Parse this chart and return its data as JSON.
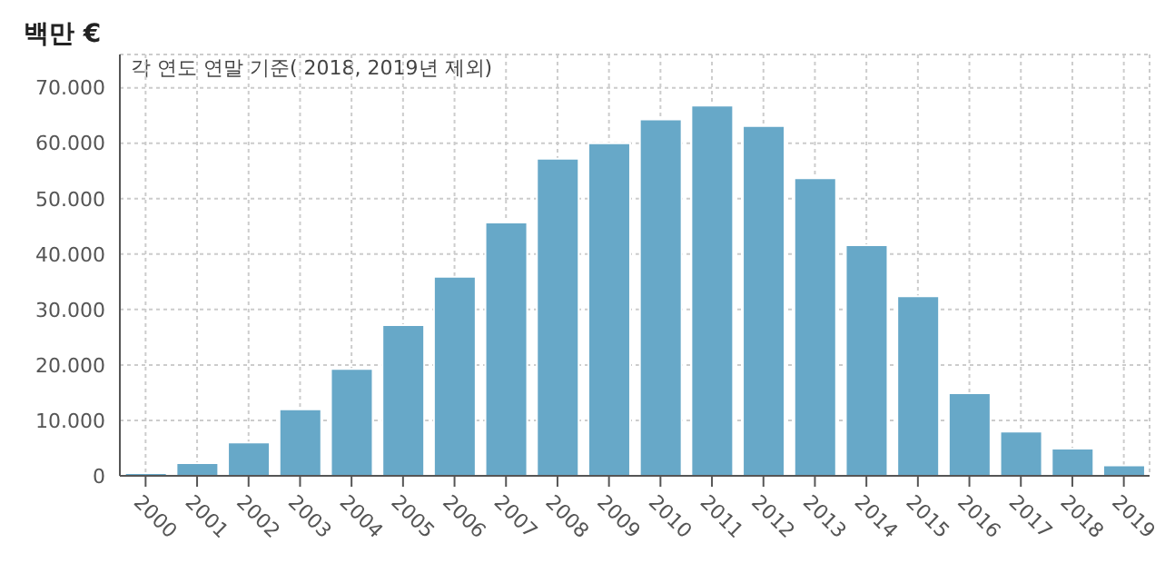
{
  "chart_data": {
    "type": "bar",
    "ylabel": "백만 €",
    "annotations": [
      "각 연도 연말 기준( 2018, 2019년 제외)"
    ],
    "categories": [
      "2000",
      "2001",
      "2002",
      "2003",
      "2004",
      "2005",
      "2006",
      "2007",
      "2008",
      "2009",
      "2010",
      "2011",
      "2012",
      "2013",
      "2014",
      "2015",
      "2016",
      "2017",
      "2018",
      "2019"
    ],
    "values": [
      500,
      2300,
      6000,
      12000,
      19300,
      27200,
      35900,
      45700,
      57200,
      60000,
      64300,
      66800,
      63100,
      53700,
      41600,
      32400,
      14900,
      8000,
      4900,
      1900
    ],
    "color": "#67a8c8",
    "ylim": [
      0,
      76000
    ],
    "yticks": [
      0,
      {
        "value": 10000,
        "label": "10.000"
      },
      {
        "value": 20000,
        "label": "20.000"
      },
      {
        "value": 30000,
        "label": "30.000"
      },
      {
        "value": 40000,
        "label": "40.000"
      },
      {
        "value": 50000,
        "label": "50.000"
      },
      {
        "value": 60000,
        "label": "60.000"
      },
      {
        "value": 70000,
        "label": "70.000"
      }
    ],
    "grid": true
  }
}
